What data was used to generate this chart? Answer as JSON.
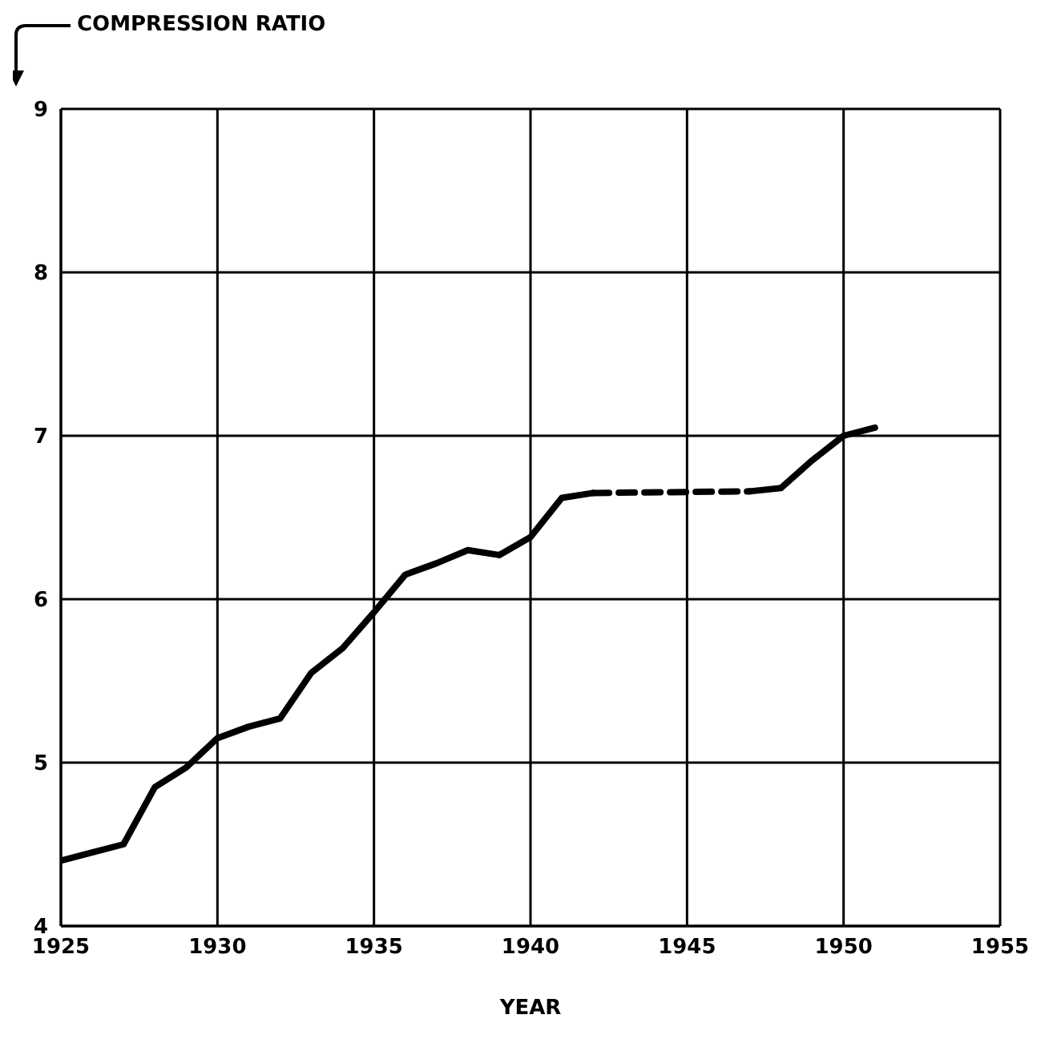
{
  "chart_data": {
    "type": "line",
    "ylabel": "COMPRESSION RATIO",
    "xlabel": "YEAR",
    "xlim": [
      1925,
      1955
    ],
    "xticks": [
      1925,
      1930,
      1935,
      1940,
      1945,
      1950,
      1955
    ],
    "ylim": [
      4,
      9
    ],
    "yticks": [
      4,
      5,
      6,
      7,
      8,
      9
    ],
    "grid": true,
    "marker": "none",
    "series": [
      {
        "color": "#000000",
        "line_style": "solid",
        "x": [
          1925,
          1926,
          1927,
          1928,
          1929,
          1930,
          1931,
          1932,
          1933,
          1934,
          1935,
          1936,
          1937,
          1938,
          1939,
          1940,
          1941,
          1942
        ],
        "values": [
          4.4,
          4.45,
          4.5,
          4.85,
          4.97,
          5.15,
          5.22,
          5.27,
          5.55,
          5.7,
          5.92,
          6.15,
          6.22,
          6.3,
          6.27,
          6.38,
          6.62,
          6.65
        ]
      },
      {
        "color": "#000000",
        "line_style": "dashed",
        "x": [
          1942,
          1947
        ],
        "values": [
          6.65,
          6.66
        ]
      },
      {
        "color": "#000000",
        "line_style": "solid",
        "x": [
          1947,
          1948,
          1949,
          1950,
          1951
        ],
        "values": [
          6.66,
          6.68,
          6.85,
          7.0,
          7.05
        ]
      }
    ]
  }
}
